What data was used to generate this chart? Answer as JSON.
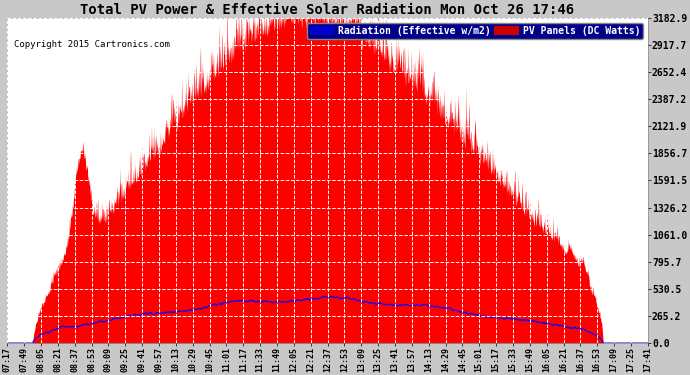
{
  "title": "Total PV Power & Effective Solar Radiation Mon Oct 26 17:46",
  "copyright": "Copyright 2015 Cartronics.com",
  "legend_blue": "Radiation (Effective w/m2)",
  "legend_red": "PV Panels (DC Watts)",
  "ylabel_values": [
    0.0,
    265.2,
    530.5,
    795.7,
    1061.0,
    1326.2,
    1591.5,
    1856.7,
    2121.9,
    2387.2,
    2652.4,
    2917.7,
    3182.9
  ],
  "ymax": 3182.9,
  "bg_color": "#c8c8c8",
  "plot_bg_color": "#ffffff",
  "grid_color": "#aaaaaa",
  "red_fill_color": "#ff0000",
  "blue_line_color": "#0000ff",
  "title_color": "#000000",
  "tick_color": "#000000",
  "legend_blue_bg": "#0000cc",
  "legend_red_bg": "#cc0000",
  "x_tick_labels": [
    "07:17",
    "07:49",
    "08:05",
    "08:21",
    "08:37",
    "08:53",
    "09:09",
    "09:25",
    "09:41",
    "09:57",
    "10:13",
    "10:29",
    "10:45",
    "11:01",
    "11:17",
    "11:33",
    "11:49",
    "12:05",
    "12:21",
    "12:37",
    "12:53",
    "13:09",
    "13:25",
    "13:41",
    "13:57",
    "14:13",
    "14:29",
    "14:45",
    "15:01",
    "15:17",
    "15:33",
    "15:49",
    "16:05",
    "16:21",
    "16:37",
    "16:53",
    "17:09",
    "17:25",
    "17:41"
  ],
  "num_points": 2000,
  "pv_peak": 3100,
  "radiation_peak": 430
}
